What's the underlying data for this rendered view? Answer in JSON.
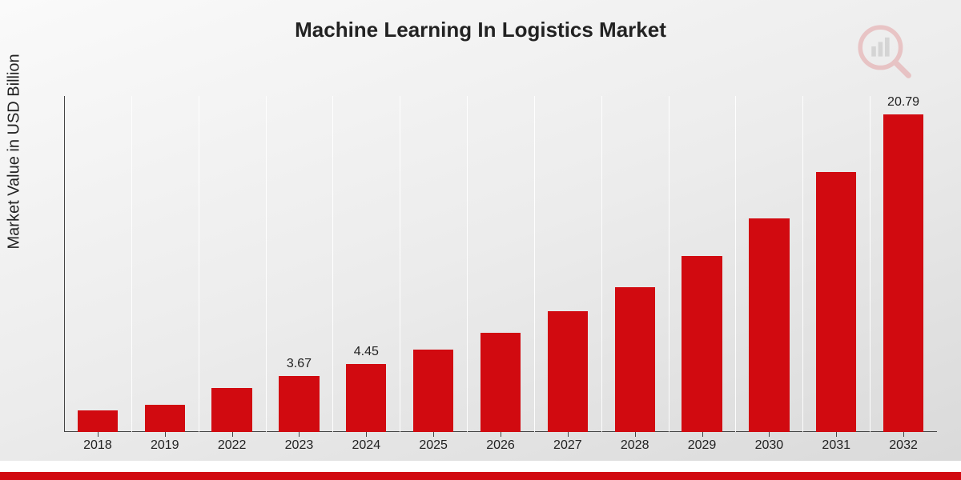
{
  "chart": {
    "type": "bar",
    "title": "Machine Learning In Logistics Market",
    "ylabel": "Market Value in USD Billion",
    "categories": [
      "2018",
      "2019",
      "2022",
      "2023",
      "2024",
      "2025",
      "2026",
      "2027",
      "2028",
      "2029",
      "2030",
      "2031",
      "2032"
    ],
    "values": [
      1.4,
      1.8,
      2.9,
      3.67,
      4.45,
      5.4,
      6.5,
      7.9,
      9.5,
      11.5,
      14.0,
      17.0,
      20.79
    ],
    "labels": {
      "2023": "3.67",
      "2024": "4.45",
      "2032": "20.79"
    },
    "ymax": 22,
    "bar_color": "#d10a10",
    "bar_width_ratio": 0.6,
    "background_gradient": {
      "from": "#fafafa",
      "mid": "#ececec",
      "to": "#d9d9d9"
    },
    "grid_color": "rgba(255,255,255,0.9)",
    "axis_color": "#444444",
    "text_color": "#222222",
    "title_fontsize": 26,
    "label_fontsize": 20,
    "tick_fontsize": 16,
    "value_label_fontsize": 16
  },
  "watermark_logo": {
    "name": "research-logo",
    "opacity": 0.18,
    "colors": {
      "arc": "#d10a10",
      "bars": "#666666",
      "handle": "#d10a10"
    }
  },
  "footer": {
    "red_band_color": "#d10a10",
    "white_band_color": "#ffffff"
  }
}
